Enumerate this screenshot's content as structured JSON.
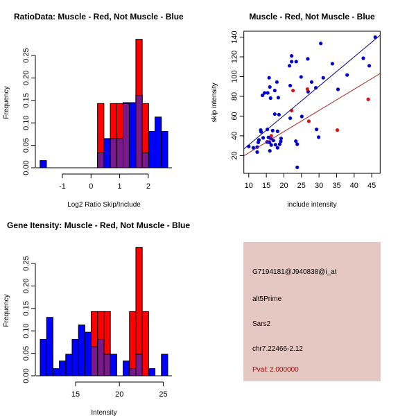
{
  "chart_data": [
    {
      "type": "bar",
      "title": "RatioData: Muscle - Red, Not Muscle - Blue",
      "xlabel": "Log2 Ratio Skip/Include",
      "ylabel": "Frequency",
      "xticks": [
        -1,
        0,
        1,
        2
      ],
      "yticks": [
        "0.00",
        "0.05",
        "0.10",
        "0.15",
        "0.20",
        "0.25"
      ],
      "bin_start": -1.78,
      "bin_width": 0.223,
      "series": [
        {
          "name": "Not Muscle",
          "color": "#0000ff",
          "values": [
            0.016,
            0,
            0,
            0,
            0,
            0,
            0,
            0,
            0,
            0.033,
            0.065,
            0.065,
            0.065,
            0.145,
            0.145,
            0.161,
            0.033,
            0.081,
            0.113,
            0.081
          ]
        },
        {
          "name": "Muscle",
          "color": "#ff0000",
          "values": [
            0,
            0,
            0,
            0,
            0,
            0,
            0,
            0,
            0,
            0.143,
            0,
            0.143,
            0.143,
            0.143,
            0,
            0.286,
            0.143,
            0,
            0,
            0
          ]
        }
      ],
      "overlap_color": "#7a1a8a"
    },
    {
      "type": "scatter",
      "title": "Muscle - Red, Not Muscle - Blue",
      "xlabel": "include intensity",
      "ylabel": "skip intensity",
      "xticks": [
        10,
        15,
        20,
        25,
        30,
        35,
        40,
        45
      ],
      "yticks": [
        20,
        40,
        60,
        80,
        100,
        120,
        140
      ],
      "xlim": [
        8.6,
        47.4
      ],
      "ylim": [
        2,
        146
      ],
      "series": [
        {
          "name": "Not Muscle",
          "color": "#0000cc",
          "line_color": "#00008b",
          "fit": {
            "slope": 2.97,
            "intercept": 1.16
          },
          "points": [
            [
              10,
              29.3
            ],
            [
              11.3,
              27.9
            ],
            [
              12.4,
              23.6
            ],
            [
              12.4,
              28.6
            ],
            [
              12.7,
              33.4
            ],
            [
              12.9,
              35.8
            ],
            [
              13.4,
              45.8
            ],
            [
              13.5,
              44.1
            ],
            [
              13.9,
              81
            ],
            [
              14.1,
              38
            ],
            [
              14.5,
              83.5
            ],
            [
              15.2,
              33.8
            ],
            [
              15.3,
              46.5
            ],
            [
              15.4,
              83.5
            ],
            [
              15.6,
              38.4
            ],
            [
              15.8,
              98.8
            ],
            [
              15.9,
              33.4
            ],
            [
              16,
              24.8
            ],
            [
              16,
              89.5
            ],
            [
              16.2,
              78.2
            ],
            [
              16.3,
              37.2
            ],
            [
              16.4,
              30.7
            ],
            [
              16.8,
              45.3
            ],
            [
              17,
              35.3
            ],
            [
              17.4,
              85.9
            ],
            [
              17.4,
              62
            ],
            [
              17.6,
              31
            ],
            [
              18,
              94.5
            ],
            [
              18.2,
              27.9
            ],
            [
              18.2,
              44.6
            ],
            [
              18.4,
              78.7
            ],
            [
              18.6,
              61.5
            ],
            [
              18.8,
              31.5
            ],
            [
              19.1,
              34.3
            ],
            [
              19.2,
              37.4
            ],
            [
              21.6,
              111
            ],
            [
              21.8,
              90.9
            ],
            [
              21.8,
              57.9
            ],
            [
              22.2,
              121
            ],
            [
              22.2,
              115.2
            ],
            [
              23.4,
              34.6
            ],
            [
              23.5,
              115.2
            ],
            [
              23.8,
              31.5
            ],
            [
              23.8,
              8.1
            ],
            [
              24.9,
              99.7
            ],
            [
              25.1,
              59.6
            ],
            [
              26.8,
              118
            ],
            [
              26.9,
              84.7
            ],
            [
              27.9,
              94.5
            ],
            [
              29.1,
              88.7
            ],
            [
              29.3,
              46.5
            ],
            [
              29.9,
              38.6
            ],
            [
              30.5,
              133.6
            ],
            [
              31.2,
              98.8
            ],
            [
              33.8,
              113.1
            ],
            [
              35.4,
              87.1
            ],
            [
              38,
              101.6
            ],
            [
              42.6,
              118.6
            ],
            [
              44.3,
              111
            ],
            [
              46,
              140
            ]
          ]
        },
        {
          "name": "Muscle",
          "color": "#dd1111",
          "line_color": "#b22222",
          "fit": {
            "slope": 2.147,
            "intercept": 1.33
          },
          "points": [
            [
              16.4,
              40
            ],
            [
              22.2,
              65.6
            ],
            [
              22.6,
              85.9
            ],
            [
              26.7,
              87.3
            ],
            [
              27.1,
              54.8
            ],
            [
              35.2,
              45.8
            ],
            [
              44,
              77
            ]
          ]
        }
      ]
    },
    {
      "type": "bar",
      "title": "Gene Itensity: Muscle - Red, Not Muscle - Blue",
      "xlabel": "Intensity",
      "ylabel": "Frequency",
      "xticks": [
        15,
        20,
        25
      ],
      "yticks": [
        "0.00",
        "0.05",
        "0.10",
        "0.15",
        "0.20",
        "0.25"
      ],
      "bin_start": 10.97,
      "bin_width": 0.727,
      "series": [
        {
          "name": "Not Muscle",
          "color": "#0000ff",
          "values": [
            0.081,
            0.13,
            0.016,
            0.033,
            0.048,
            0.081,
            0.113,
            0.097,
            0.065,
            0.081,
            0.048,
            0.048,
            0,
            0.033,
            0.016,
            0.048,
            0,
            0.016,
            0,
            0.048
          ]
        },
        {
          "name": "Muscle",
          "color": "#ff0000",
          "values": [
            0,
            0,
            0,
            0,
            0,
            0,
            0,
            0,
            0.143,
            0.143,
            0.143,
            0,
            0,
            0,
            0.143,
            0.286,
            0.143,
            0,
            0,
            0
          ]
        }
      ],
      "overlap_color": "#7a1a8a"
    }
  ],
  "info_panel": {
    "background": "#e6c8c2",
    "lines": [
      "G7194181@J940838@i_at",
      "alt5Prime",
      "Sars2",
      "chr7.22466-2.12"
    ],
    "pval": "Pval: 2.000000",
    "pval_color": "#aa0000"
  }
}
